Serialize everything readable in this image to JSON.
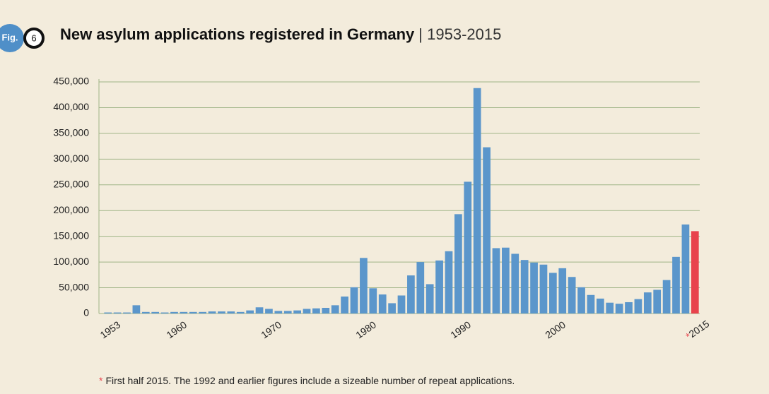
{
  "figure_label": "Fig.",
  "figure_number": "6",
  "chart_data": {
    "type": "bar",
    "title": "New asylum applications registered in Germany",
    "subtitle": "| 1953-2015",
    "categories": [
      "1953",
      null,
      null,
      null,
      null,
      null,
      null,
      "1960",
      null,
      null,
      null,
      null,
      null,
      null,
      null,
      null,
      null,
      "1970",
      null,
      null,
      null,
      null,
      null,
      null,
      null,
      null,
      null,
      "1980",
      null,
      null,
      null,
      null,
      null,
      null,
      null,
      null,
      null,
      "1990",
      null,
      null,
      null,
      null,
      null,
      null,
      null,
      null,
      null,
      "2000",
      null,
      null,
      null,
      null,
      null,
      null,
      null,
      null,
      null,
      null,
      null,
      null,
      null,
      null,
      "2015"
    ],
    "values": [
      2000,
      2000,
      2000,
      16000,
      3000,
      3000,
      2000,
      3000,
      3000,
      3000,
      3000,
      4000,
      4000,
      4000,
      3000,
      6000,
      12000,
      9000,
      5000,
      5000,
      6000,
      9000,
      10000,
      11000,
      16000,
      33000,
      51000,
      108000,
      49000,
      37000,
      20000,
      35000,
      74000,
      100000,
      57000,
      103000,
      121000,
      193000,
      256000,
      438000,
      323000,
      127000,
      128000,
      116000,
      104000,
      99000,
      95000,
      79000,
      88000,
      71000,
      51000,
      36000,
      29000,
      21000,
      19000,
      22000,
      28000,
      41000,
      46000,
      65000,
      110000,
      173000,
      160000
    ],
    "bar_colors": [
      "#5b96cb",
      "#5b96cb",
      "#5b96cb",
      "#5b96cb",
      "#5b96cb",
      "#5b96cb",
      "#5b96cb",
      "#5b96cb",
      "#5b96cb",
      "#5b96cb",
      "#5b96cb",
      "#5b96cb",
      "#5b96cb",
      "#5b96cb",
      "#5b96cb",
      "#5b96cb",
      "#5b96cb",
      "#5b96cb",
      "#5b96cb",
      "#5b96cb",
      "#5b96cb",
      "#5b96cb",
      "#5b96cb",
      "#5b96cb",
      "#5b96cb",
      "#5b96cb",
      "#5b96cb",
      "#5b96cb",
      "#5b96cb",
      "#5b96cb",
      "#5b96cb",
      "#5b96cb",
      "#5b96cb",
      "#5b96cb",
      "#5b96cb",
      "#5b96cb",
      "#5b96cb",
      "#5b96cb",
      "#5b96cb",
      "#5b96cb",
      "#5b96cb",
      "#5b96cb",
      "#5b96cb",
      "#5b96cb",
      "#5b96cb",
      "#5b96cb",
      "#5b96cb",
      "#5b96cb",
      "#5b96cb",
      "#5b96cb",
      "#5b96cb",
      "#5b96cb",
      "#5b96cb",
      "#5b96cb",
      "#5b96cb",
      "#5b96cb",
      "#5b96cb",
      "#5b96cb",
      "#5b96cb",
      "#5b96cb",
      "#5b96cb",
      "#5b96cb",
      "#e8434c"
    ],
    "ylim": [
      0,
      450000
    ],
    "yticks": [
      0,
      {
        "value": 50000,
        "label": "50,000"
      },
      {
        "value": 100000,
        "label": "100,000"
      },
      {
        "value": 150000,
        "label": "150,000"
      },
      {
        "value": 200000,
        "label": "200,000"
      },
      {
        "value": 250000,
        "label": "250,000"
      },
      {
        "value": 300000,
        "label": "300,000"
      },
      {
        "value": 350000,
        "label": "350,000"
      },
      {
        "value": 400000,
        "label": "400,000"
      },
      {
        "value": 450000,
        "label": "450,000"
      }
    ],
    "grid": true,
    "note_marker": "*",
    "footnote": "First half 2015. The 1992 and earlier figures include a sizeable number of repeat applications."
  }
}
